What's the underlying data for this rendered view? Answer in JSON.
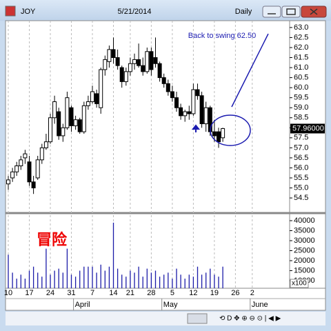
{
  "window": {
    "symbol": "JOY",
    "date": "5/21/2014",
    "interval": "Daily"
  },
  "chart_data": [
    {
      "type": "candlestick",
      "categories": [
        "10",
        null,
        null,
        null,
        null,
        "17",
        null,
        null,
        null,
        null,
        "24",
        null,
        null,
        null,
        null,
        "31",
        null,
        null,
        null,
        null,
        "7",
        null,
        null,
        null,
        null,
        "14",
        null,
        null,
        null,
        "21",
        null,
        null,
        null,
        null,
        "28",
        null,
        null,
        null,
        null,
        "5",
        null,
        null,
        null,
        null,
        "12",
        null,
        null,
        null,
        null,
        "19",
        null,
        null,
        null,
        null,
        "26",
        null,
        null,
        null,
        "2",
        null,
        null,
        null,
        null,
        null,
        null,
        null,
        null
      ],
      "month_labels": [
        null,
        null,
        null,
        null,
        null,
        null,
        null,
        null,
        null,
        null,
        null,
        null,
        null,
        null,
        null,
        null,
        "April",
        null,
        null,
        null,
        null,
        null,
        null,
        null,
        null,
        null,
        null,
        null,
        null,
        null,
        null,
        null,
        null,
        null,
        null,
        null,
        null,
        "May",
        null,
        null,
        null,
        null,
        null,
        null,
        null,
        null,
        null,
        null,
        null,
        null,
        null,
        null,
        null,
        null,
        null,
        null,
        null,
        null,
        "June",
        null,
        null,
        null,
        null,
        null,
        null,
        null,
        null
      ],
      "open": [
        55.2,
        55.5,
        55.8,
        56.1,
        56.5,
        56.3,
        55.3,
        55.5,
        56.4,
        57.0,
        57.3,
        58.5,
        58.8,
        57.6,
        58.0,
        59.0,
        58.1,
        58.4,
        57.8,
        59.1,
        59.3,
        59.7,
        59.0,
        60.9,
        61.3,
        61.9,
        61.5,
        61.0,
        60.3,
        60.8,
        61.2,
        61.4,
        61.1,
        60.8,
        61.8,
        61.5,
        61.2,
        60.5,
        60.2,
        59.8,
        59.5,
        59.0,
        58.6,
        58.8,
        58.7,
        59.9,
        59.6,
        58.2,
        59.0,
        57.8,
        57.8,
        57.5,
        null,
        null,
        null,
        null,
        null,
        null,
        null,
        null,
        null,
        null,
        null,
        null,
        null,
        null,
        null
      ],
      "high": [
        55.6,
        56.0,
        56.3,
        56.6,
        56.9,
        56.6,
        55.6,
        56.6,
        57.2,
        57.7,
        58.7,
        59.6,
        59.0,
        58.2,
        59.8,
        59.1,
        58.6,
        58.5,
        59.3,
        59.6,
        60.1,
        59.9,
        61.0,
        61.6,
        62.1,
        62.5,
        61.9,
        61.1,
        61.0,
        61.5,
        61.7,
        62.2,
        61.5,
        62.0,
        62.0,
        62.5,
        61.3,
        60.7,
        60.4,
        60.1,
        59.8,
        59.2,
        58.9,
        59.1,
        60.2,
        60.2,
        59.8,
        59.3,
        59.1,
        58.4,
        58.0,
        58.0,
        null,
        null,
        null,
        null,
        null,
        null,
        null,
        null,
        null,
        null,
        null,
        null,
        null,
        null,
        null
      ],
      "low": [
        54.9,
        55.3,
        55.6,
        55.9,
        56.2,
        55.1,
        54.7,
        55.4,
        56.2,
        56.9,
        57.2,
        58.2,
        57.4,
        57.3,
        57.9,
        57.8,
        57.9,
        57.7,
        57.7,
        58.9,
        59.2,
        59.0,
        58.7,
        60.6,
        61.0,
        61.2,
        60.9,
        60.0,
        60.1,
        60.6,
        60.9,
        61.0,
        60.6,
        60.7,
        60.6,
        61.0,
        60.3,
        60.0,
        59.6,
        59.3,
        58.8,
        58.4,
        58.3,
        58.4,
        58.6,
        59.4,
        58.0,
        57.8,
        57.6,
        57.3,
        57.0,
        57.3,
        null,
        null,
        null,
        null,
        null,
        null,
        null,
        null,
        null,
        null,
        null,
        null,
        null,
        null,
        null
      ],
      "close": [
        55.4,
        55.8,
        56.1,
        56.4,
        56.7,
        55.3,
        55.0,
        56.4,
        57.0,
        57.3,
        58.5,
        59.3,
        57.6,
        58.0,
        59.5,
        58.1,
        58.4,
        57.8,
        59.1,
        59.3,
        59.8,
        59.2,
        60.9,
        61.4,
        61.9,
        61.5,
        61.1,
        60.3,
        60.8,
        61.2,
        61.4,
        61.1,
        60.8,
        61.8,
        60.9,
        61.2,
        60.5,
        60.2,
        59.8,
        59.5,
        59.0,
        58.6,
        58.8,
        58.7,
        59.9,
        59.6,
        58.2,
        59.0,
        57.8,
        57.6,
        57.3,
        57.96,
        null,
        null,
        null,
        null,
        null,
        null,
        null,
        null,
        null,
        null,
        null,
        null,
        null,
        null,
        null
      ],
      "last_price": {
        "value": 57.96,
        "label": "57.96000"
      },
      "ylim": [
        53.78,
        63.34
      ],
      "yticks": [
        54.5,
        {
          "value": 55,
          "label": "55.0"
        },
        55.5,
        {
          "value": 56,
          "label": "56.0"
        },
        56.5,
        {
          "value": 57,
          "label": "57.0"
        },
        57.5,
        {
          "value": 58,
          "label": "58.0"
        },
        58.5,
        {
          "value": 59,
          "label": "59.0"
        },
        59.5,
        {
          "value": 60,
          "label": "60.0"
        },
        60.5,
        {
          "value": 61,
          "label": "61.0"
        },
        61.5,
        {
          "value": 62,
          "label": "62.0"
        },
        62.5,
        {
          "value": 63,
          "label": "63.0"
        }
      ],
      "annotations": [
        "Back to swing 62.50",
        "冒险"
      ]
    },
    {
      "type": "bar",
      "color": "#1a1aa8",
      "values": [
        23000,
        14000,
        11000,
        13000,
        11000,
        15000,
        17000,
        14000,
        12000,
        26000,
        13000,
        15000,
        16000,
        14000,
        26000,
        13000,
        12000,
        15000,
        17000,
        17000,
        17000,
        14000,
        18000,
        15000,
        17000,
        39000,
        16000,
        13000,
        12000,
        15000,
        14000,
        17000,
        12000,
        16000,
        14000,
        15000,
        12000,
        13000,
        14000,
        11000,
        16000,
        13000,
        11000,
        13000,
        12000,
        17000,
        13000,
        14000,
        16000,
        13000,
        12000,
        17000,
        null,
        null,
        null,
        null,
        null,
        null,
        null,
        null,
        null,
        null,
        null,
        null,
        null,
        null,
        null
      ],
      "ylim": [
        6200,
        42760
      ],
      "yticks": [
        10000,
        15000,
        20000,
        25000,
        30000,
        35000,
        40000
      ],
      "unit_label": "x100"
    }
  ]
}
